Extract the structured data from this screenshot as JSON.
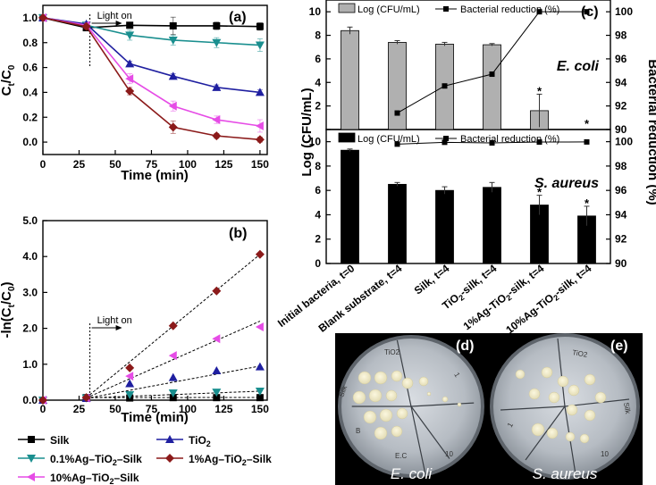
{
  "chart_data": [
    {
      "type": "line",
      "panel_label": "(a)",
      "title": "",
      "xlabel": "Time (min)",
      "ylabel": "Ct/C0",
      "ylabel_main": "C",
      "ylabel_sub1": "t",
      "ylabel_div": "/C",
      "ylabel_sub2": "0",
      "xlim": [
        0,
        155
      ],
      "ylim": [
        -0.1,
        1.1
      ],
      "xticks": [
        0,
        25,
        50,
        75,
        100,
        125,
        150
      ],
      "xtick_labels": [
        "0",
        "25",
        "50",
        "75",
        "100",
        "125",
        "150"
      ],
      "yticks": [
        0.0,
        0.2,
        0.4,
        0.6,
        0.8,
        1.0
      ],
      "ytick_labels": [
        "0.0",
        "0.2",
        "0.4",
        "0.6",
        "0.8",
        "1.0"
      ],
      "annotation": "Light on",
      "annotation_x": 30,
      "x": [
        0,
        30,
        60,
        90,
        120,
        150
      ],
      "series": [
        {
          "name": "Silk",
          "color": "#000000",
          "marker": "square",
          "values": [
            1.0,
            0.92,
            0.94,
            0.935,
            0.935,
            0.93
          ],
          "err": [
            0.01,
            0.02,
            0.02,
            0.07,
            0.03,
            0.03
          ]
        },
        {
          "name": "0.1%Ag–TiO2–Silk",
          "color": "#1a8f8f",
          "marker": "tri-down",
          "values": [
            1.0,
            0.94,
            0.86,
            0.82,
            0.8,
            0.78
          ],
          "err": [
            0.01,
            0.02,
            0.04,
            0.04,
            0.04,
            0.05
          ]
        },
        {
          "name": "TiO2",
          "color": "#1f1fa0",
          "marker": "tri-up",
          "values": [
            1.0,
            0.95,
            0.63,
            0.53,
            0.44,
            0.4
          ],
          "err": [
            0.01,
            0.01,
            0.02,
            0.02,
            0.02,
            0.02
          ]
        },
        {
          "name": "10%Ag–TiO2–Silk",
          "color": "#e64ce6",
          "marker": "tri-left",
          "values": [
            1.0,
            0.94,
            0.51,
            0.29,
            0.18,
            0.13
          ],
          "err": [
            0.01,
            0.02,
            0.04,
            0.04,
            0.03,
            0.05
          ]
        },
        {
          "name": "1%Ag–TiO2–Silk",
          "color": "#8b1a1a",
          "marker": "diamond",
          "values": [
            1.0,
            0.93,
            0.41,
            0.12,
            0.05,
            0.02
          ],
          "err": [
            0.01,
            0.02,
            0.03,
            0.05,
            0.02,
            0.02
          ]
        }
      ]
    },
    {
      "type": "scatter",
      "panel_label": "(b)",
      "title": "",
      "xlabel": "Time (min)",
      "ylabel": "-ln(Ct/C0)",
      "ylabel_pre": "-ln(C",
      "ylabel_sub1": "t",
      "ylabel_div": "/C",
      "ylabel_sub2": "0",
      "ylabel_post": ")",
      "xlim": [
        0,
        155
      ],
      "ylim": [
        0,
        5
      ],
      "xticks": [
        0,
        25,
        50,
        75,
        100,
        125,
        150
      ],
      "xtick_labels": [
        "0",
        "25",
        "50",
        "75",
        "100",
        "125",
        "150"
      ],
      "yticks": [
        0,
        1,
        2,
        3,
        4,
        5
      ],
      "ytick_labels": [
        "0.0",
        "1.0",
        "2.0",
        "3.0",
        "4.0",
        "5.0"
      ],
      "annotation": "Light on",
      "annotation_x": 30,
      "x": [
        0,
        30,
        60,
        90,
        120,
        150
      ],
      "series": [
        {
          "name": "Silk",
          "color": "#000000",
          "marker": "square",
          "values": [
            0.0,
            0.07,
            0.06,
            0.07,
            0.07,
            0.07
          ],
          "fit": [
            0.07,
            0.075
          ]
        },
        {
          "name": "0.1%Ag–TiO2–Silk",
          "color": "#1a8f8f",
          "marker": "tri-down",
          "values": [
            0.0,
            0.06,
            0.15,
            0.2,
            0.22,
            0.25
          ],
          "fit": [
            0.06,
            0.25
          ]
        },
        {
          "name": "TiO2",
          "color": "#1f1fa0",
          "marker": "tri-up",
          "values": [
            0.0,
            0.05,
            0.46,
            0.63,
            0.82,
            0.93
          ],
          "fit": [
            0.05,
            0.95
          ]
        },
        {
          "name": "10%Ag–TiO2–Silk",
          "color": "#e64ce6",
          "marker": "tri-left",
          "values": [
            0.0,
            0.06,
            0.67,
            1.24,
            1.71,
            2.04
          ],
          "fit": [
            0.06,
            2.2
          ]
        },
        {
          "name": "1%Ag–TiO2–Silk",
          "color": "#8b1a1a",
          "marker": "diamond",
          "values": [
            0.0,
            0.07,
            0.9,
            2.07,
            3.04,
            4.06
          ],
          "fit": [
            0.07,
            4.06
          ]
        }
      ],
      "legend": [
        {
          "label": "Silk",
          "color": "#000000",
          "marker": "square",
          "pre": "Silk",
          "sub": "",
          "post": ""
        },
        {
          "label": "TiO2",
          "color": "#1f1fa0",
          "marker": "tri-up",
          "pre": "TiO",
          "sub": "2",
          "post": ""
        },
        {
          "label": "0.1%Ag–TiO2–Silk",
          "color": "#1a8f8f",
          "marker": "tri-down",
          "pre": "0.1%Ag–TiO",
          "sub": "2",
          "post": "–Silk"
        },
        {
          "label": "1%Ag–TiO2–Silk",
          "color": "#8b1a1a",
          "marker": "diamond",
          "pre": "1%Ag–TiO",
          "sub": "2",
          "post": "–Silk"
        },
        {
          "label": "10%Ag–TiO2–Silk",
          "color": "#e64ce6",
          "marker": "tri-left",
          "pre": "10%Ag–TiO",
          "sub": "2",
          "post": "–Silk"
        }
      ]
    },
    {
      "type": "bar",
      "panel_label": "(c)",
      "title": "",
      "ylabel_left": "Log (CFU/mL)",
      "ylabel_right": "Bacterial reduction (%)",
      "categories": [
        {
          "label": "Initial bacteria, t=0",
          "pre": "Initial bacteria, t=0",
          "sub": "",
          "post": ""
        },
        {
          "label": "Blank substrate, t=4",
          "pre": "Blank substrate, t=4",
          "sub": "",
          "post": ""
        },
        {
          "label": "Silk, t=4",
          "pre": "Silk, t=4",
          "sub": "",
          "post": ""
        },
        {
          "label": "TiO2-silk, t=4",
          "pre": "TiO",
          "sub": "2",
          "post": "-silk, t=4"
        },
        {
          "label": "1%Ag-TiO2-silk, t=4",
          "pre": "1%Ag-TiO",
          "sub": "2",
          "post": "-silk, t=4"
        },
        {
          "label": "10%Ag-TiO2-silk, t=4",
          "pre": "10%Ag-TiO",
          "sub": "2",
          "post": "-silk, t=4"
        }
      ],
      "left_ylim": [
        0,
        11
      ],
      "left_yticks": [
        0,
        2,
        4,
        6,
        8,
        10
      ],
      "right_ylim": [
        90,
        101
      ],
      "right_yticks": [
        90,
        92,
        94,
        96,
        98,
        100
      ],
      "subplots": [
        {
          "organism": "E. coli",
          "bar_color": "#b0b0b0",
          "legend_bar": "Log (CFU/mL)",
          "legend_line": "Bacterial reduction (%)",
          "log_cfu": [
            8.4,
            7.4,
            7.25,
            7.2,
            1.6,
            0
          ],
          "log_err": [
            0.3,
            0.15,
            0.15,
            0.1,
            1.4,
            0
          ],
          "reduction": [
            null,
            91.4,
            93.7,
            94.7,
            100,
            100
          ],
          "significance": [
            false,
            false,
            false,
            false,
            true,
            true
          ],
          "marker": "*"
        },
        {
          "organism": "S. aureus",
          "bar_color": "#000000",
          "legend_bar": "Log (CFU/mL)",
          "legend_line": "Bacterial reduction (%)",
          "log_cfu": [
            9.3,
            6.5,
            6.0,
            6.25,
            4.8,
            3.9
          ],
          "log_err": [
            0.1,
            0.15,
            0.3,
            0.4,
            0.8,
            0.8
          ],
          "reduction": [
            null,
            99.8,
            99.95,
            99.9,
            99.97,
            99.98
          ],
          "significance": [
            false,
            false,
            false,
            false,
            true,
            true
          ],
          "marker": "*"
        }
      ]
    }
  ],
  "photos": [
    {
      "panel_label": "(d)",
      "caption": "E. coli",
      "plate_marks": [
        "TiO2",
        "Silk",
        "10",
        "1",
        "B",
        "E.C"
      ]
    },
    {
      "panel_label": "(e)",
      "caption": "S. aureus",
      "plate_marks": [
        "TiO2",
        "Silk",
        "10",
        "1"
      ]
    }
  ]
}
